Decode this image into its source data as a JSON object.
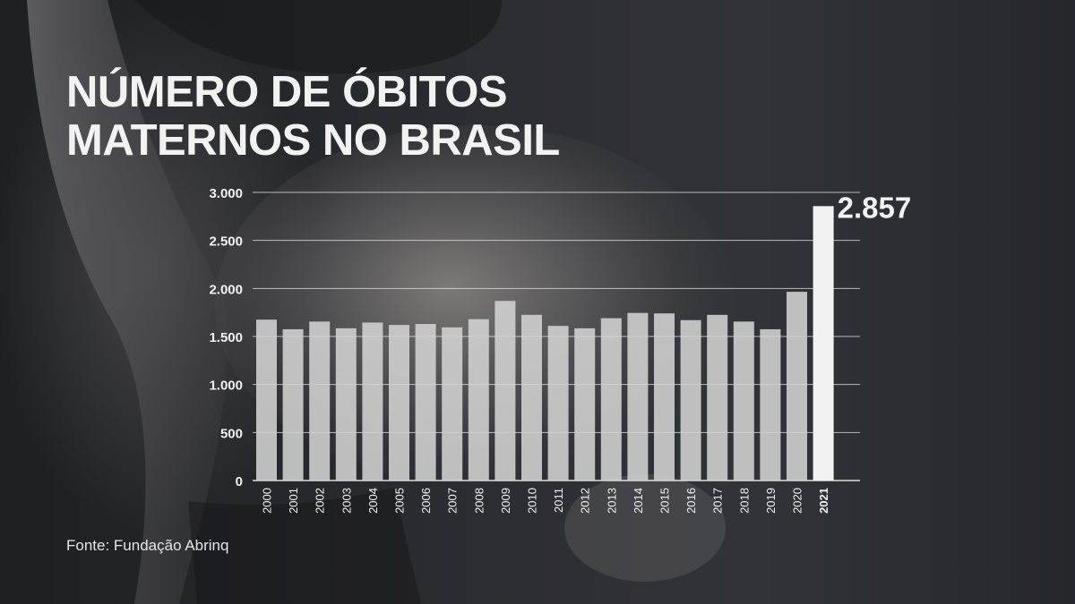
{
  "title_line1": "NÚMERO DE ÓBITOS",
  "title_line2": "MATERNOS NO BRASIL",
  "source": "Fonte: Fundação Abrinq",
  "colors": {
    "bar": "#d3d3d3",
    "bar_highlight": "#f2f2f2",
    "grid": "#e8e8e8",
    "text": "#f2f2f2"
  },
  "chart_data": {
    "type": "bar",
    "categories": [
      "2000",
      "2001",
      "2002",
      "2003",
      "2004",
      "2005",
      "2006",
      "2007",
      "2008",
      "2009",
      "2010",
      "2011",
      "2012",
      "2013",
      "2014",
      "2015",
      "2016",
      "2017",
      "2018",
      "2019",
      "2020",
      "2021"
    ],
    "values": [
      1675,
      1575,
      1655,
      1585,
      1645,
      1620,
      1630,
      1595,
      1680,
      1870,
      1725,
      1610,
      1585,
      1690,
      1745,
      1740,
      1670,
      1725,
      1655,
      1575,
      1965,
      2857
    ],
    "highlight_category": "2021",
    "highlight_label": "2.857",
    "ylim": [
      0,
      3000
    ],
    "yticks": [
      0,
      500,
      1000,
      1500,
      2000,
      2500,
      3000
    ],
    "ytick_labels": [
      "0",
      "500",
      "1.000",
      "1.500",
      "2.000",
      "2.500",
      "3.000"
    ],
    "grid": true
  }
}
